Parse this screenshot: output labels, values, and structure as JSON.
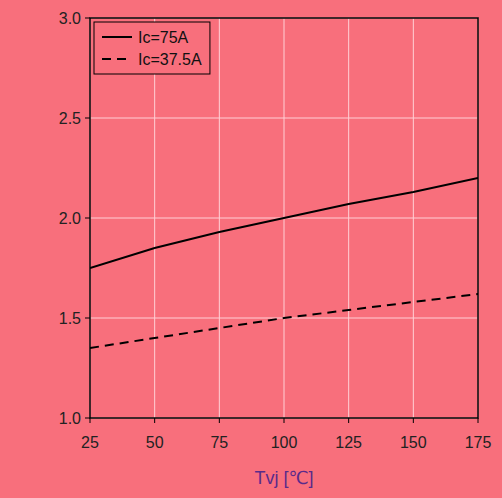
{
  "chart_data": {
    "type": "line",
    "x_label": "Tvj [℃]",
    "x": [
      25,
      50,
      75,
      100,
      125,
      150,
      175
    ],
    "series": [
      {
        "name": "Ic=75A",
        "color": "#000000",
        "line_style": "solid",
        "values": [
          1.75,
          1.85,
          1.93,
          2.0,
          2.07,
          2.13,
          2.2
        ]
      },
      {
        "name": "Ic=37.5A",
        "color": "#000000",
        "line_style": "dashed",
        "values": [
          1.35,
          1.4,
          1.45,
          1.5,
          1.54,
          1.58,
          1.62
        ]
      }
    ],
    "xlim": [
      25,
      175
    ],
    "xticks": [
      25,
      50,
      75,
      100,
      125,
      150,
      175
    ],
    "ylim": [
      1.0,
      3.0
    ],
    "yticks": [
      {
        "value": 1.0,
        "label": "1.0"
      },
      {
        "value": 1.5,
        "label": "1.5"
      },
      {
        "value": 2.0,
        "label": "2.0"
      },
      {
        "value": 2.5,
        "label": "2.5"
      },
      {
        "value": 3.0,
        "label": "3.0"
      }
    ],
    "grid": true,
    "legend": "top-left"
  }
}
